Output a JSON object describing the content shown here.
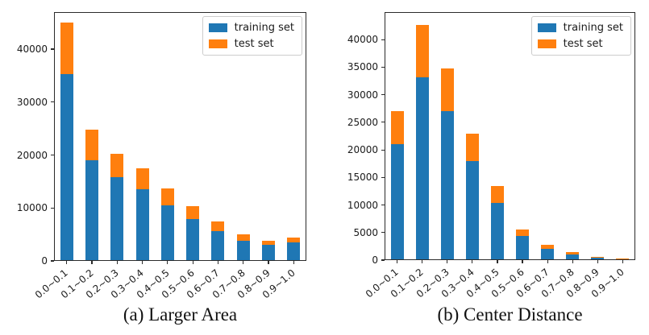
{
  "colors": {
    "training": "#1f77b4",
    "test": "#ff7f0e",
    "axis": "#2b2b2b",
    "legend_border": "#cccccc",
    "background": "#ffffff"
  },
  "chart_data": [
    {
      "type": "bar",
      "stacked": true,
      "title": "(a) Larger Area",
      "categories": [
        "0.0~0.1",
        "0.1~0.2",
        "0.2~0.3",
        "0.3~0.4",
        "0.4~0.5",
        "0.5~0.6",
        "0.6~0.7",
        "0.7~0.8",
        "0.8~0.9",
        "0.9~1.0"
      ],
      "series": [
        {
          "name": "training set",
          "color": "#1f77b4",
          "values": [
            35300,
            19000,
            15800,
            13500,
            10500,
            7900,
            5700,
            3800,
            3000,
            3500
          ]
        },
        {
          "name": "test set",
          "color": "#ff7f0e",
          "values": [
            9700,
            5800,
            4500,
            4000,
            3200,
            2400,
            1800,
            1300,
            750,
            900
          ]
        }
      ],
      "xlabel": "",
      "ylabel": "",
      "ylim": [
        0,
        47000
      ],
      "yticks": [
        0,
        10000,
        20000,
        30000,
        40000
      ],
      "x_tick_rotation_deg": 40,
      "grid": false,
      "legend_position": "upper right"
    },
    {
      "type": "bar",
      "stacked": true,
      "title": "(b) Center Distance",
      "categories": [
        "0.0~0.1",
        "0.1~0.2",
        "0.2~0.3",
        "0.3~0.4",
        "0.4~0.5",
        "0.5~0.6",
        "0.6~0.7",
        "0.7~0.8",
        "0.8~0.9",
        "0.9~1.0"
      ],
      "series": [
        {
          "name": "training set",
          "color": "#1f77b4",
          "values": [
            21000,
            33200,
            27000,
            18000,
            10400,
            4400,
            2000,
            1000,
            500,
            200
          ]
        },
        {
          "name": "test set",
          "color": "#ff7f0e",
          "values": [
            6000,
            9400,
            7800,
            5000,
            3000,
            1200,
            800,
            500,
            100,
            50
          ]
        }
      ],
      "xlabel": "",
      "ylabel": "",
      "ylim": [
        0,
        45000
      ],
      "yticks": [
        0,
        5000,
        10000,
        15000,
        20000,
        25000,
        30000,
        35000,
        40000
      ],
      "x_tick_rotation_deg": 40,
      "grid": false,
      "legend_position": "upper right"
    }
  ]
}
